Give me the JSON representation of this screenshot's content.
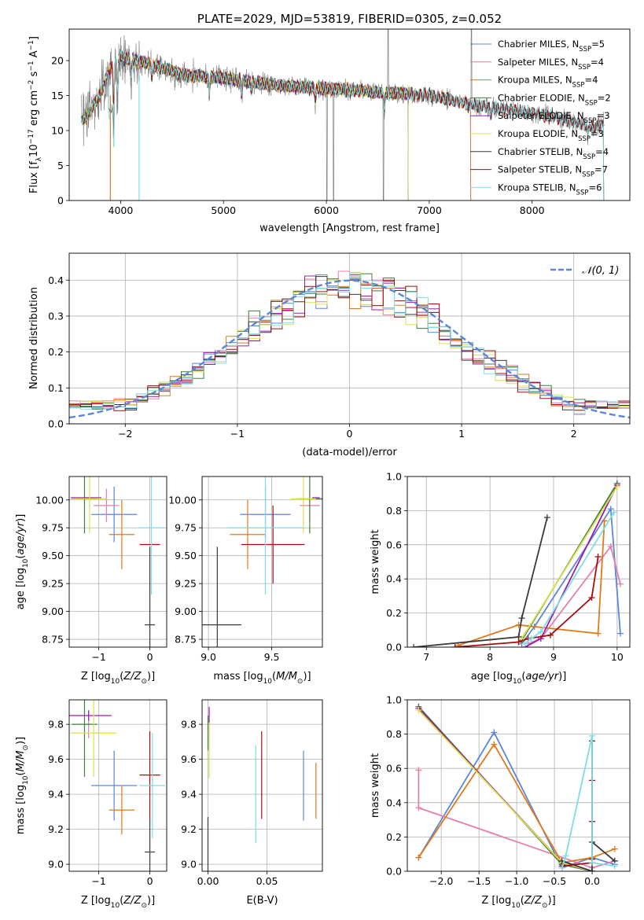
{
  "figure": {
    "title": "PLATE=2029, MJD=53819, FIBERID=0305, z=0.052"
  },
  "colors": {
    "Chabrier MILES": "#5b87d9",
    "Salpeter MILES": "#e57fae",
    "Kroupa MILES": "#df7a1c",
    "Chabrier ELODIE": "#3d7f3d",
    "Salpeter ELODIE": "#9a1ea8",
    "Kroupa ELODIE": "#dde04a",
    "Chabrier STELIB": "#3a3a3a",
    "Salpeter STELIB": "#a30f0f",
    "Kroupa STELIB": "#7fdde3",
    "data": "#808080",
    "normal": "#5b87d9"
  },
  "models": [
    {
      "name": "Chabrier MILES",
      "nssp": "5"
    },
    {
      "name": "Salpeter MILES",
      "nssp": "4"
    },
    {
      "name": "Kroupa MILES",
      "nssp": "4"
    },
    {
      "name": "Chabrier ELODIE",
      "nssp": "2"
    },
    {
      "name": "Salpeter ELODIE",
      "nssp": "3"
    },
    {
      "name": "Kroupa ELODIE",
      "nssp": "3"
    },
    {
      "name": "Chabrier STELIB",
      "nssp": "4"
    },
    {
      "name": "Salpeter STELIB",
      "nssp": "7"
    },
    {
      "name": "Kroupa STELIB",
      "nssp": "6"
    }
  ],
  "chart_data": [
    {
      "id": "spectrum",
      "type": "line",
      "xlabel": "wavelength [Angstrom, rest frame]",
      "ylabel": "Flux [f_λ10^-17 erg cm^-2 s^-1 A^-1]",
      "xlim": [
        3500,
        8950
      ],
      "ylim": [
        0,
        24.5
      ],
      "xticks": [
        4000,
        5000,
        6000,
        7000,
        8000
      ],
      "yticks": [
        0,
        5,
        10,
        15,
        20
      ],
      "legend": "top-right",
      "continuum_knots": [
        [
          3650,
          11.5
        ],
        [
          3800,
          15
        ],
        [
          3900,
          19
        ],
        [
          4000,
          20.5
        ],
        [
          4300,
          19.5
        ],
        [
          4600,
          18
        ],
        [
          5000,
          17.5
        ],
        [
          5500,
          16.5
        ],
        [
          6000,
          16
        ],
        [
          6500,
          15.5
        ],
        [
          7000,
          15
        ],
        [
          7500,
          13.5
        ],
        [
          7800,
          13
        ],
        [
          8200,
          12
        ],
        [
          8600,
          10.5
        ],
        [
          8700,
          11
        ]
      ],
      "absorption_features": [
        [
          3933,
          9
        ],
        [
          3968,
          7
        ],
        [
          4102,
          4
        ],
        [
          4304,
          3
        ],
        [
          4861,
          3
        ],
        [
          5175,
          3
        ],
        [
          5270,
          2
        ],
        [
          5893,
          3
        ],
        [
          6563,
          4
        ],
        [
          7600,
          2
        ],
        [
          8542,
          2
        ]
      ]
    },
    {
      "id": "residuals",
      "type": "histogram",
      "xlabel": "(data-model)/error",
      "ylabel": "Normed distribution",
      "xlim": [
        -2.5,
        2.5
      ],
      "ylim": [
        0,
        0.475
      ],
      "xticks": [
        -2,
        -1,
        0,
        1,
        2
      ],
      "yticks": [
        0,
        0.1,
        0.2,
        0.3,
        0.4
      ],
      "bin_width": 0.1,
      "legend": "top-right",
      "legend_label": "𝒩(0, 1)",
      "normal": {
        "mu": 0,
        "sigma": 1
      }
    },
    {
      "id": "age_vs_Z",
      "type": "errorbar",
      "xlabel": "Z [log10(Z/Z⊙)]",
      "ylabel": "age [log10(age/yr)]",
      "xlim": [
        -1.58,
        0.33
      ],
      "ylim": [
        8.68,
        10.21
      ],
      "xticks": [
        -1,
        0
      ],
      "yticks": [
        8.75,
        9.0,
        9.25,
        9.5,
        9.75,
        10.0
      ],
      "points": [
        {
          "model": "Chabrier MILES",
          "x": -0.7,
          "y": 9.87,
          "xerr": 0.45,
          "yerr": 0.25
        },
        {
          "model": "Salpeter MILES",
          "x": -0.85,
          "y": 9.95,
          "xerr": 0.25,
          "yerr": 0.15
        },
        {
          "model": "Kroupa MILES",
          "x": -0.55,
          "y": 9.69,
          "xerr": 0.25,
          "yerr": 0.31
        },
        {
          "model": "Chabrier ELODIE",
          "x": -1.28,
          "y": 10.01,
          "xerr": 0.25,
          "yerr": 0.31
        },
        {
          "model": "Salpeter ELODIE",
          "x": -1.25,
          "y": 10.02,
          "xerr": 0.3,
          "yerr": 0.0
        },
        {
          "model": "Kroupa ELODIE",
          "x": -1.18,
          "y": 10.01,
          "xerr": 0.35,
          "yerr": 0.31
        },
        {
          "model": "Chabrier STELIB",
          "x": 0.0,
          "y": 8.88,
          "xerr": 0.1,
          "yerr": 0.7
        },
        {
          "model": "Salpeter STELIB",
          "x": 0.0,
          "y": 9.6,
          "xerr": 0.2,
          "yerr": 0.0
        },
        {
          "model": "Kroupa STELIB",
          "x": 0.03,
          "y": 9.75,
          "xerr": 0.25,
          "yerr": 0.6
        }
      ]
    },
    {
      "id": "age_vs_mass",
      "type": "errorbar",
      "xlabel": "mass [log10(M/M⊙)]",
      "ylabel": "",
      "xlim": [
        8.95,
        9.9
      ],
      "ylim": [
        8.68,
        10.21
      ],
      "xticks": [
        9.0,
        9.5
      ],
      "yticks": [
        8.75,
        9.0,
        9.25,
        9.5,
        9.75,
        10.0
      ],
      "points": [
        {
          "model": "Chabrier MILES",
          "x": 9.45,
          "y": 9.87,
          "xerr": 0.2,
          "yerr": 0.25
        },
        {
          "model": "Salpeter MILES",
          "x": 9.8,
          "y": 9.95,
          "xerr": 0.08,
          "yerr": 0.15
        },
        {
          "model": "Kroupa MILES",
          "x": 9.31,
          "y": 9.69,
          "xerr": 0.14,
          "yerr": 0.31
        },
        {
          "model": "Chabrier ELODIE",
          "x": 9.8,
          "y": 10.01,
          "xerr": 0.1,
          "yerr": 0.31
        },
        {
          "model": "Salpeter ELODIE",
          "x": 9.85,
          "y": 10.02,
          "xerr": 0.03,
          "yerr": 0.0
        },
        {
          "model": "Kroupa ELODIE",
          "x": 9.75,
          "y": 10.01,
          "xerr": 0.1,
          "yerr": 0.31
        },
        {
          "model": "Chabrier STELIB",
          "x": 9.07,
          "y": 8.88,
          "xerr": 0.19,
          "yerr": 0.7
        },
        {
          "model": "Salpeter STELIB",
          "x": 9.51,
          "y": 9.6,
          "xerr": 0.25,
          "yerr": 0.35
        },
        {
          "model": "Kroupa STELIB",
          "x": 9.45,
          "y": 9.75,
          "xerr": 0.3,
          "yerr": 0.6
        }
      ]
    },
    {
      "id": "mass_vs_Z",
      "type": "errorbar",
      "xlabel": "Z [log10(Z/Z⊙)]",
      "ylabel": "mass [log10(M/M⊙)]",
      "xlim": [
        -1.58,
        0.33
      ],
      "ylim": [
        8.96,
        9.94
      ],
      "xticks": [
        -1,
        0
      ],
      "yticks": [
        9.0,
        9.2,
        9.4,
        9.6,
        9.8
      ],
      "points": [
        {
          "model": "Chabrier MILES",
          "x": -0.7,
          "y": 9.45,
          "xerr": 0.45,
          "yerr": 0.2
        },
        {
          "model": "Salpeter MILES",
          "x": -1.2,
          "y": 9.8,
          "xerr": 0.0,
          "yerr": 0.08
        },
        {
          "model": "Kroupa MILES",
          "x": -0.55,
          "y": 9.31,
          "xerr": 0.25,
          "yerr": 0.14
        },
        {
          "model": "Chabrier ELODIE",
          "x": -1.28,
          "y": 9.8,
          "xerr": 0.25,
          "yerr": 0.3
        },
        {
          "model": "Salpeter ELODIE",
          "x": -1.2,
          "y": 9.85,
          "xerr": 0.45,
          "yerr": 0.03
        },
        {
          "model": "Kroupa ELODIE",
          "x": -1.1,
          "y": 9.75,
          "xerr": 0.45,
          "yerr": 0.25
        },
        {
          "model": "Chabrier STELIB",
          "x": 0.0,
          "y": 9.07,
          "xerr": 0.1,
          "yerr": 0.19
        },
        {
          "model": "Salpeter STELIB",
          "x": 0.0,
          "y": 9.51,
          "xerr": 0.2,
          "yerr": 0.25
        },
        {
          "model": "Kroupa STELIB",
          "x": 0.05,
          "y": 9.45,
          "xerr": 0.25,
          "yerr": 0.3
        }
      ]
    },
    {
      "id": "mass_vs_EBV",
      "type": "errorbar",
      "xlabel": "E(B-V)",
      "ylabel": "",
      "xlim": [
        -0.005,
        0.097
      ],
      "ylim": [
        8.96,
        9.94
      ],
      "xticks": [
        0.0,
        0.05
      ],
      "yticks": [
        9.0,
        9.2,
        9.4,
        9.6,
        9.8
      ],
      "points": [
        {
          "model": "Chabrier MILES",
          "x": 0.081,
          "y": 9.45,
          "xerr": 0.0,
          "yerr": 0.2
        },
        {
          "model": "Salpeter MILES",
          "x": 0.001,
          "y": 9.8,
          "xerr": 0.0,
          "yerr": 0.08
        },
        {
          "model": "Kroupa MILES",
          "x": 0.0915,
          "y": 9.42,
          "xerr": 0.0,
          "yerr": 0.16
        },
        {
          "model": "Chabrier ELODIE",
          "x": 0.0,
          "y": 9.75,
          "xerr": 0.0,
          "yerr": 0.1
        },
        {
          "model": "Salpeter ELODIE",
          "x": 0.001,
          "y": 9.85,
          "xerr": 0.0,
          "yerr": 0.05
        },
        {
          "model": "Kroupa ELODIE",
          "x": 0.001,
          "y": 9.65,
          "xerr": 0.0,
          "yerr": 0.16
        },
        {
          "model": "Chabrier STELIB",
          "x": 0.0,
          "y": 9.07,
          "xerr": 0.0,
          "yerr": 0.2
        },
        {
          "model": "Salpeter STELIB",
          "x": 0.0455,
          "y": 9.51,
          "xerr": 0.0,
          "yerr": 0.25
        },
        {
          "model": "Kroupa STELIB",
          "x": 0.0405,
          "y": 9.4,
          "xerr": 0.0,
          "yerr": 0.28
        }
      ]
    },
    {
      "id": "massweight_vs_age",
      "type": "line",
      "xlabel": "age [log10(age/yr)]",
      "ylabel": "mass weight",
      "xlim": [
        6.7,
        10.2
      ],
      "ylim": [
        0,
        1.0
      ],
      "xticks": [
        7,
        8,
        9,
        10
      ],
      "yticks": [
        0.0,
        0.2,
        0.4,
        0.6,
        0.8,
        1.0
      ],
      "series": [
        {
          "model": "Chabrier MILES",
          "x": [
            8.5,
            8.7,
            9.9,
            10.05
          ],
          "y": [
            0.02,
            0.12,
            0.81,
            0.08
          ]
        },
        {
          "model": "Salpeter MILES",
          "x": [
            8.6,
            8.8,
            9.9,
            10.05
          ],
          "y": [
            0.02,
            0.05,
            0.59,
            0.37
          ]
        },
        {
          "model": "Kroupa MILES",
          "x": [
            7.5,
            8.45,
            9.7,
            9.8
          ],
          "y": [
            0.01,
            0.13,
            0.08,
            0.74
          ]
        },
        {
          "model": "Chabrier ELODIE",
          "x": [
            8.5,
            10.0
          ],
          "y": [
            0.04,
            0.96
          ]
        },
        {
          "model": "Salpeter ELODIE",
          "x": [
            8.55,
            8.8,
            10.0
          ],
          "y": [
            0.0,
            0.05,
            0.95
          ]
        },
        {
          "model": "Kroupa ELODIE",
          "x": [
            8.5,
            10.0
          ],
          "y": [
            0.05,
            0.94
          ]
        },
        {
          "model": "Chabrier STELIB",
          "x": [
            6.8,
            8.45,
            8.5,
            8.9
          ],
          "y": [
            0.0,
            0.06,
            0.17,
            0.76
          ]
        },
        {
          "model": "Salpeter STELIB",
          "x": [
            7.45,
            8.45,
            8.6,
            8.95,
            9.6,
            9.7
          ],
          "y": [
            0.0,
            0.03,
            0.05,
            0.07,
            0.29,
            0.53
          ]
        },
        {
          "model": "Kroupa STELIB",
          "x": [
            8.55,
            8.65,
            8.8,
            9.95
          ],
          "y": [
            0.02,
            0.05,
            0.09,
            0.79
          ]
        }
      ]
    },
    {
      "id": "massweight_vs_Z",
      "type": "line",
      "xlabel": "Z [log10(Z/Z⊙)]",
      "ylabel": "mass weight",
      "xlim": [
        -2.45,
        0.5
      ],
      "ylim": [
        0,
        1.0
      ],
      "xticks": [
        -2.0,
        -1.5,
        -1.0,
        -0.5,
        0.0
      ],
      "yticks": [
        0.0,
        0.2,
        0.4,
        0.6,
        0.8,
        1.0
      ],
      "series": [
        {
          "model": "Chabrier MILES",
          "x": [
            -2.3,
            -1.3,
            -0.4,
            0.0,
            0.3
          ],
          "y": [
            0.08,
            0.81,
            0.02,
            0.08,
            0.04
          ]
        },
        {
          "model": "Salpeter MILES",
          "x": [
            -2.3,
            -2.3,
            0.0,
            0.3
          ],
          "y": [
            0.59,
            0.37,
            0.02,
            0.06
          ]
        },
        {
          "model": "Kroupa MILES",
          "x": [
            -2.3,
            -1.3,
            -0.4,
            0.0,
            0.3
          ],
          "y": [
            0.08,
            0.74,
            0.05,
            0.08,
            0.13
          ]
        },
        {
          "model": "Chabrier ELODIE",
          "x": [
            -2.3,
            -0.4,
            0.0
          ],
          "y": [
            0.96,
            0.04,
            0.0
          ]
        },
        {
          "model": "Salpeter ELODIE",
          "x": [
            -2.3,
            -0.4,
            0.0
          ],
          "y": [
            0.95,
            0.05,
            0.0
          ]
        },
        {
          "model": "Kroupa ELODIE",
          "x": [
            -2.3,
            -0.4,
            0.0
          ],
          "y": [
            0.94,
            0.05,
            0.0
          ]
        },
        {
          "model": "Chabrier STELIB",
          "x": [
            -0.4,
            0.0,
            0.0,
            0.0,
            0.3
          ],
          "y": [
            0.06,
            0.0,
            0.76,
            0.17,
            0.06
          ]
        },
        {
          "model": "Salpeter STELIB",
          "x": [
            -0.4,
            0.0,
            0.0,
            0.0,
            0.0
          ],
          "y": [
            0.03,
            0.05,
            0.53,
            0.29,
            0.07
          ]
        },
        {
          "model": "Kroupa STELIB",
          "x": [
            -0.4,
            -0.35,
            0.0,
            0.0,
            0.3
          ],
          "y": [
            0.02,
            0.09,
            0.79,
            0.05,
            0.03
          ]
        }
      ]
    }
  ]
}
